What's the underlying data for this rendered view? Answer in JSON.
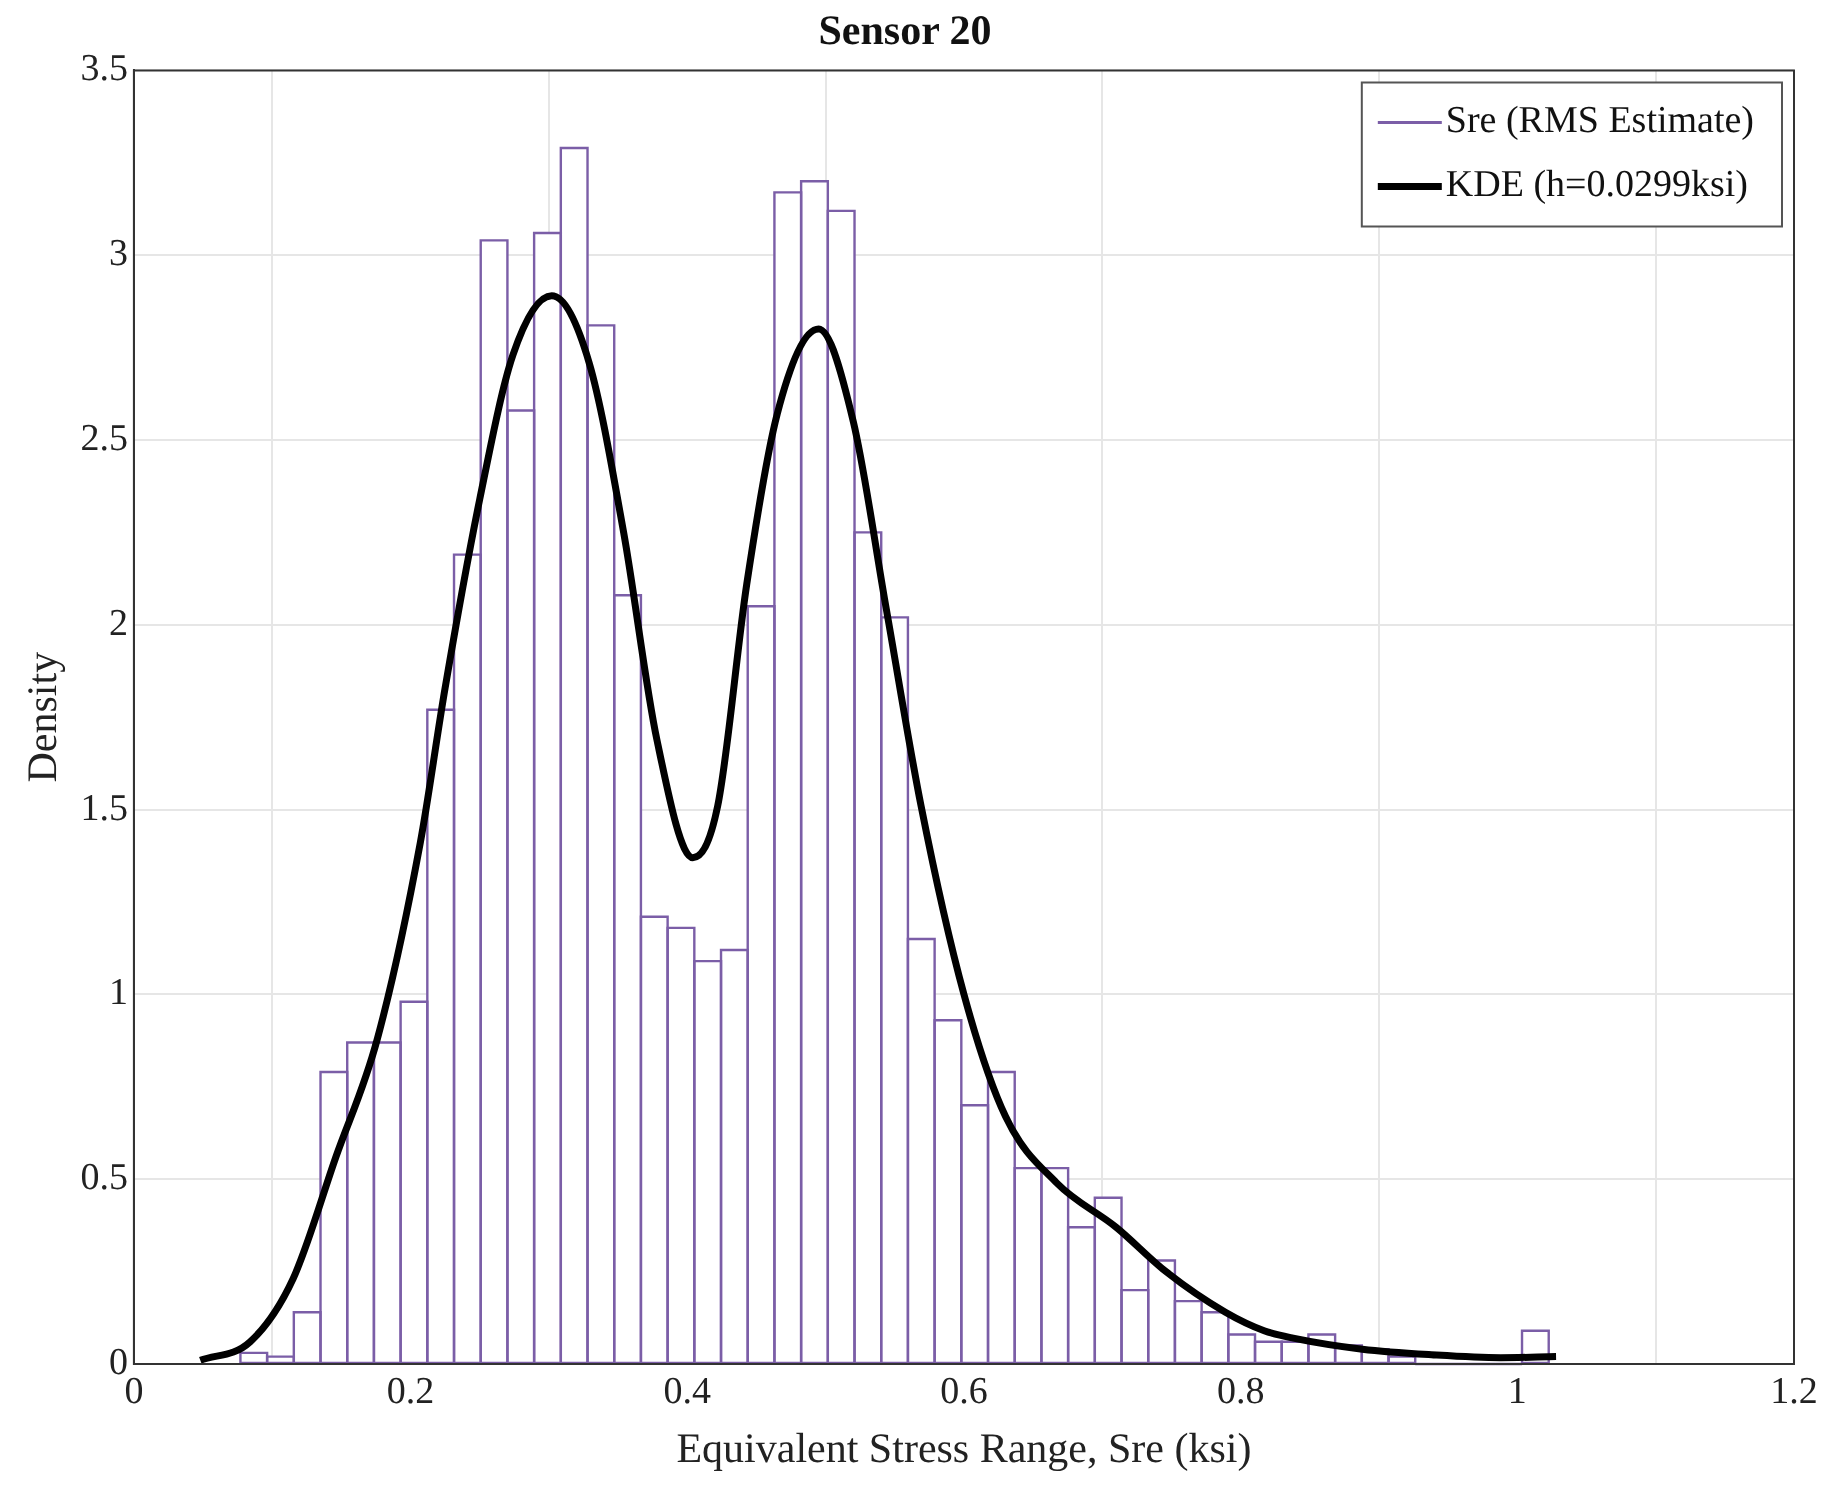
{
  "chart_data": {
    "type": "histogram",
    "title": "Sensor 20",
    "xlabel": "Equivalent Stress Range, Sre (ksi)",
    "ylabel": "Density",
    "xlim": [
      0,
      1.2
    ],
    "xticks": [
      0,
      0.2,
      0.4,
      0.6,
      0.8,
      1,
      1.2
    ],
    "ylim": [
      0,
      3.5
    ],
    "yticks": [
      0,
      0.5,
      1,
      1.5,
      2,
      2.5,
      3,
      3.5
    ],
    "grid": true,
    "legend": "top right",
    "bins": [
      0.077,
      0.0963,
      0.1156,
      0.1349,
      0.1542,
      0.1735,
      0.1928,
      0.2121,
      0.2314,
      0.2507,
      0.27,
      0.2893,
      0.3086,
      0.3279,
      0.3472,
      0.3665,
      0.3858,
      0.4051,
      0.4244,
      0.4437,
      0.463,
      0.4823,
      0.5016,
      0.5209,
      0.5402,
      0.5595,
      0.5788,
      0.5981,
      0.6174,
      0.6367,
      0.656,
      0.6753,
      0.6946,
      0.7139,
      0.7332,
      0.7525,
      0.7718,
      0.7911,
      0.8104,
      0.8297,
      0.849,
      0.8683,
      0.8876,
      0.9069,
      0.9262,
      0.9455,
      0.9648,
      0.9841,
      1.0034,
      1.0227
    ],
    "series": [
      {
        "name": "Sre (RMS Estimate)",
        "type": "histogram",
        "color": "#7b5ea7",
        "values": [
          0.03,
          0.02,
          0.14,
          0.79,
          0.87,
          0.87,
          0.98,
          1.77,
          2.19,
          3.04,
          2.58,
          3.06,
          3.29,
          2.81,
          2.08,
          1.21,
          1.18,
          1.09,
          1.12,
          2.05,
          3.17,
          3.2,
          3.12,
          2.25,
          2.02,
          1.15,
          0.93,
          0.7,
          0.79,
          0.53,
          0.53,
          0.37,
          0.45,
          0.2,
          0.28,
          0.17,
          0.14,
          0.08,
          0.06,
          0.06,
          0.08,
          0.05,
          0.04,
          0.02,
          null,
          null,
          null,
          null,
          0.09
        ]
      },
      {
        "name": "KDE (h=0.0299ksi)",
        "type": "line",
        "color": "#000000",
        "x": [
          0.048,
          0.084,
          0.115,
          0.146,
          0.176,
          0.207,
          0.225,
          0.25,
          0.274,
          0.302,
          0.329,
          0.354,
          0.378,
          0.404,
          0.422,
          0.443,
          0.465,
          0.495,
          0.52,
          0.544,
          0.569,
          0.6,
          0.63,
          0.667,
          0.71,
          0.746,
          0.789,
          0.817,
          0.838,
          0.888,
          0.938,
          0.988,
          1.028
        ],
        "values": [
          0.01,
          0.06,
          0.23,
          0.56,
          0.88,
          1.41,
          1.83,
          2.34,
          2.73,
          2.89,
          2.71,
          2.25,
          1.69,
          1.37,
          1.51,
          2.11,
          2.57,
          2.8,
          2.55,
          2.04,
          1.51,
          1,
          0.67,
          0.49,
          0.37,
          0.25,
          0.14,
          0.09,
          0.07,
          0.04,
          0.025,
          0.017,
          0.02
        ]
      }
    ]
  }
}
